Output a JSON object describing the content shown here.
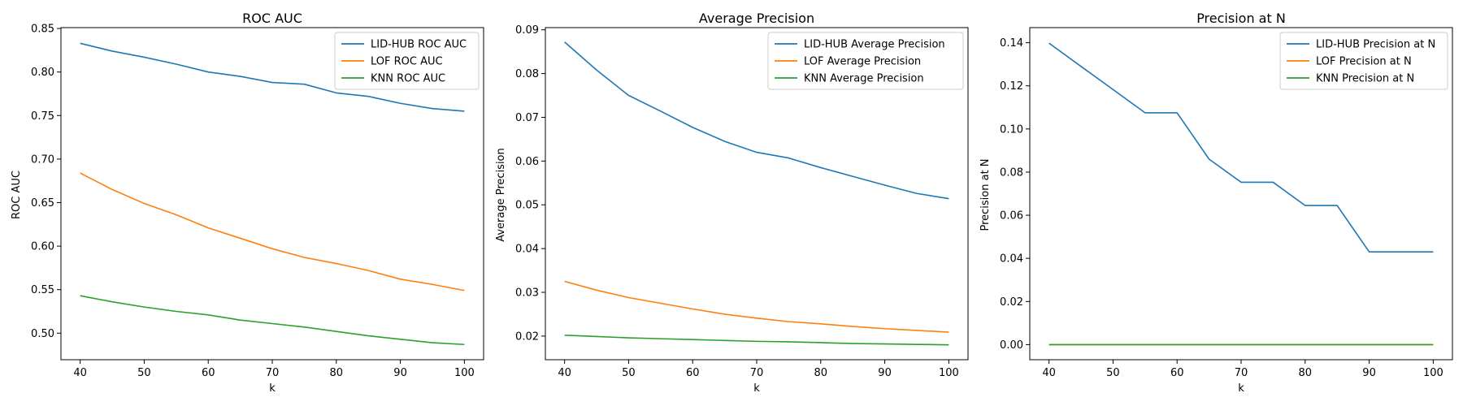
{
  "chart_data": [
    {
      "type": "line",
      "title": "ROC AUC",
      "xlabel": "k",
      "ylabel": "ROC AUC",
      "xlim": [
        37,
        103
      ],
      "ylim": [
        0.4695,
        0.851
      ],
      "xticks": [
        40,
        50,
        60,
        70,
        80,
        90,
        100
      ],
      "yticks": [
        0.5,
        0.55,
        0.6,
        0.65,
        0.7,
        0.75,
        0.8,
        0.85
      ],
      "ytick_labels": [
        "0.50",
        "0.55",
        "0.60",
        "0.65",
        "0.70",
        "0.75",
        "0.80",
        "0.85"
      ],
      "legend_position": "upper-right",
      "grid": false,
      "x": [
        40,
        45,
        50,
        55,
        60,
        65,
        70,
        75,
        80,
        85,
        90,
        95,
        100
      ],
      "series": [
        {
          "name": "LID-HUB ROC AUC",
          "color": "#1f77b4",
          "values": [
            0.833,
            0.824,
            0.817,
            0.809,
            0.8,
            0.795,
            0.788,
            0.786,
            0.776,
            0.772,
            0.764,
            0.758,
            0.755
          ]
        },
        {
          "name": "LOF ROC AUC",
          "color": "#ff7f0e",
          "values": [
            0.684,
            0.665,
            0.649,
            0.636,
            0.621,
            0.609,
            0.597,
            0.587,
            0.58,
            0.572,
            0.562,
            0.556,
            0.549
          ]
        },
        {
          "name": "KNN ROC AUC",
          "color": "#2ca02c",
          "values": [
            0.543,
            0.536,
            0.53,
            0.525,
            0.521,
            0.515,
            0.511,
            0.507,
            0.502,
            0.497,
            0.493,
            0.489,
            0.487
          ]
        }
      ]
    },
    {
      "type": "line",
      "title": "Average Precision",
      "xlabel": "k",
      "ylabel": "Average Precision",
      "xlim": [
        37,
        103
      ],
      "ylim": [
        0.0146,
        0.0905
      ],
      "xticks": [
        40,
        50,
        60,
        70,
        80,
        90,
        100
      ],
      "yticks": [
        0.02,
        0.03,
        0.04,
        0.05,
        0.06,
        0.07,
        0.08,
        0.09
      ],
      "ytick_labels": [
        "0.02",
        "0.03",
        "0.04",
        "0.05",
        "0.06",
        "0.07",
        "0.08",
        "0.09"
      ],
      "legend_position": "upper-right",
      "grid": false,
      "x": [
        40,
        45,
        50,
        55,
        60,
        65,
        70,
        75,
        80,
        85,
        90,
        95,
        100
      ],
      "series": [
        {
          "name": "LID-HUB Average Precision",
          "color": "#1f77b4",
          "values": [
            0.0872,
            0.0808,
            0.075,
            0.0714,
            0.0677,
            0.0645,
            0.062,
            0.0607,
            0.0585,
            0.0565,
            0.0545,
            0.0526,
            0.0514
          ]
        },
        {
          "name": "LOF Average Precision",
          "color": "#ff7f0e",
          "values": [
            0.0325,
            0.0305,
            0.0288,
            0.0275,
            0.0262,
            0.025,
            0.0241,
            0.0233,
            0.0228,
            0.0222,
            0.0217,
            0.0213,
            0.0209
          ]
        },
        {
          "name": "KNN Average Precision",
          "color": "#2ca02c",
          "values": [
            0.0202,
            0.0199,
            0.0196,
            0.0194,
            0.0192,
            0.019,
            0.0188,
            0.0187,
            0.0185,
            0.0183,
            0.0182,
            0.0181,
            0.018
          ]
        }
      ]
    },
    {
      "type": "line",
      "title": "Precision at N",
      "xlabel": "k",
      "ylabel": "Precision at N",
      "xlim": [
        37,
        103
      ],
      "ylim": [
        -0.007,
        0.147
      ],
      "xticks": [
        40,
        50,
        60,
        70,
        80,
        90,
        100
      ],
      "yticks": [
        0.0,
        0.02,
        0.04,
        0.06,
        0.08,
        0.1,
        0.12,
        0.14
      ],
      "ytick_labels": [
        "0.00",
        "0.02",
        "0.04",
        "0.06",
        "0.08",
        "0.10",
        "0.12",
        "0.14"
      ],
      "legend_position": "upper-right",
      "grid": false,
      "x": [
        40,
        45,
        50,
        55,
        60,
        65,
        70,
        75,
        80,
        85,
        90,
        95,
        100
      ],
      "series": [
        {
          "name": "LID-HUB Precision at N",
          "color": "#1f77b4",
          "values": [
            0.1398,
            0.129,
            0.1183,
            0.1075,
            0.1075,
            0.086,
            0.0753,
            0.0753,
            0.0645,
            0.0645,
            0.043,
            0.043,
            0.043
          ]
        },
        {
          "name": "LOF Precision at N",
          "color": "#ff7f0e",
          "values": [
            0,
            0,
            0,
            0,
            0,
            0,
            0,
            0,
            0,
            0,
            0,
            0,
            0
          ]
        },
        {
          "name": "KNN Precision at N",
          "color": "#2ca02c",
          "values": [
            0,
            0,
            0,
            0,
            0,
            0,
            0,
            0,
            0,
            0,
            0,
            0,
            0
          ]
        }
      ]
    }
  ]
}
